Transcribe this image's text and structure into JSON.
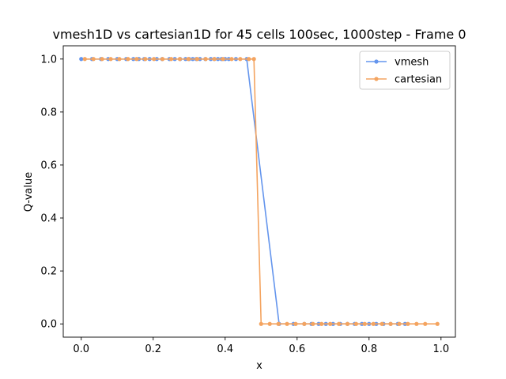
{
  "chart_data": {
    "type": "line",
    "title": "vmesh1D vs cartesian1D for 45 cells 100sec, 1000step - Frame 0",
    "xlabel": "x",
    "ylabel": "Q-value",
    "xlim": [
      -0.05,
      1.04
    ],
    "ylim": [
      -0.05,
      1.05
    ],
    "xticks": [
      0.0,
      0.2,
      0.4,
      0.6,
      0.8,
      1.0
    ],
    "xtick_labels": [
      "0.0",
      "0.2",
      "0.4",
      "0.6",
      "0.8",
      "1.0"
    ],
    "yticks": [
      0.0,
      0.2,
      0.4,
      0.6,
      0.8,
      1.0
    ],
    "ytick_labels": [
      "0.0",
      "0.2",
      "0.4",
      "0.6",
      "0.8",
      "1.0"
    ],
    "grid": false,
    "legend_position": "top-right",
    "series": [
      {
        "name": "vmesh",
        "color": "#6495ED",
        "x": [
          0.0,
          0.03,
          0.055,
          0.075,
          0.1,
          0.125,
          0.145,
          0.16,
          0.175,
          0.19,
          0.21,
          0.225,
          0.245,
          0.26,
          0.275,
          0.29,
          0.3,
          0.31,
          0.32,
          0.33,
          0.345,
          0.36,
          0.37,
          0.38,
          0.39,
          0.4,
          0.41,
          0.43,
          0.46,
          0.55,
          0.59,
          0.62,
          0.64,
          0.66,
          0.68,
          0.7,
          0.72,
          0.74,
          0.76,
          0.78,
          0.8,
          0.82,
          0.84,
          0.86,
          0.88,
          0.9
        ],
        "y": [
          1.0,
          1.0,
          1.0,
          1.0,
          1.0,
          1.0,
          1.0,
          1.0,
          1.0,
          1.0,
          1.0,
          1.0,
          1.0,
          1.0,
          1.0,
          1.0,
          1.0,
          1.0,
          1.0,
          1.0,
          1.0,
          1.0,
          1.0,
          1.0,
          1.0,
          1.0,
          1.0,
          1.0,
          1.0,
          0.0,
          0.0,
          0.0,
          0.0,
          0.0,
          0.0,
          0.0,
          0.0,
          0.0,
          0.0,
          0.0,
          0.0,
          0.0,
          0.0,
          0.0,
          0.0,
          0.0
        ]
      },
      {
        "name": "cartesian",
        "color": "#F4A460",
        "x": [
          0.01,
          0.034,
          0.058,
          0.082,
          0.106,
          0.13,
          0.154,
          0.178,
          0.202,
          0.226,
          0.25,
          0.274,
          0.298,
          0.322,
          0.346,
          0.37,
          0.394,
          0.418,
          0.442,
          0.466,
          0.48,
          0.5,
          0.524,
          0.548,
          0.572,
          0.596,
          0.62,
          0.644,
          0.668,
          0.692,
          0.716,
          0.74,
          0.764,
          0.788,
          0.812,
          0.836,
          0.86,
          0.884,
          0.908,
          0.932,
          0.956,
          0.99
        ],
        "y": [
          1.0,
          1.0,
          1.0,
          1.0,
          1.0,
          1.0,
          1.0,
          1.0,
          1.0,
          1.0,
          1.0,
          1.0,
          1.0,
          1.0,
          1.0,
          1.0,
          1.0,
          1.0,
          1.0,
          1.0,
          1.0,
          0.0,
          0.0,
          0.0,
          0.0,
          0.0,
          0.0,
          0.0,
          0.0,
          0.0,
          0.0,
          0.0,
          0.0,
          0.0,
          0.0,
          0.0,
          0.0,
          0.0,
          0.0,
          0.0,
          0.0,
          0.0
        ]
      }
    ]
  }
}
